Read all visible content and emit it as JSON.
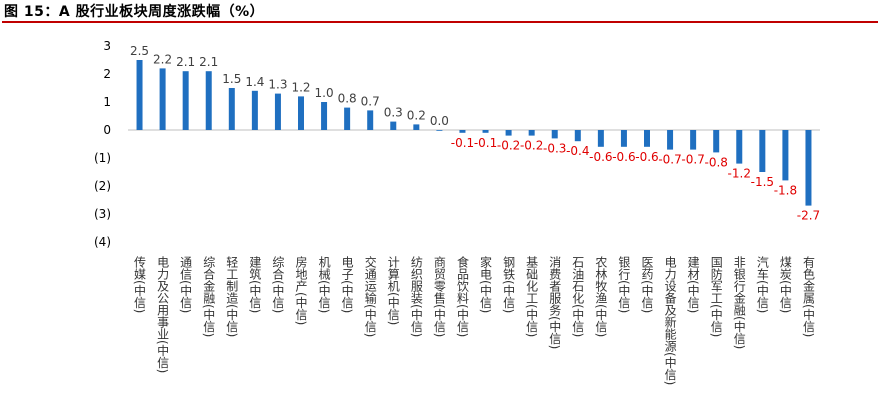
{
  "title": "图 15：A 股行业板块周度涨跌幅（%）",
  "colors": {
    "bar": "#1f6fc0",
    "positive_label": "#404040",
    "negative_label": "#e00000",
    "rule": "#c00000"
  },
  "chart_data": {
    "type": "bar",
    "title": "图 15：A 股行业板块周度涨跌幅（%）",
    "xlabel": "",
    "ylabel": "",
    "ylim": [
      -4,
      3
    ],
    "yticks": [
      3,
      2,
      1,
      0,
      -1,
      -2,
      -3,
      -4
    ],
    "ytick_labels": [
      "3",
      "2",
      "1",
      "0",
      "(1)",
      "(2)",
      "(3)",
      "(4)"
    ],
    "grid": false,
    "legend": "none",
    "categories": [
      "传媒(中信)",
      "电力及公用事业(中信)",
      "通信(中信)",
      "综合金融(中信)",
      "轻工制造(中信)",
      "建筑(中信)",
      "综合(中信)",
      "房地产(中信)",
      "机械(中信)",
      "电子(中信)",
      "交通运输(中信)",
      "计算机(中信)",
      "纺织服装(中信)",
      "商贸零售(中信)",
      "食品饮料(中信)",
      "家电(中信)",
      "钢铁(中信)",
      "基础化工(中信)",
      "消费者服务(中信)",
      "石油石化(中信)",
      "农林牧渔(中信)",
      "银行(中信)",
      "医药(中信)",
      "电力设备及新能源(中信)",
      "建材(中信)",
      "国防军工(中信)",
      "非银行金融(中信)",
      "汽车(中信)",
      "煤炭(中信)",
      "有色金属(中信)"
    ],
    "values": [
      2.5,
      2.2,
      2.1,
      2.1,
      1.5,
      1.4,
      1.3,
      1.2,
      1.0,
      0.8,
      0.7,
      0.3,
      0.2,
      0.0,
      -0.1,
      -0.1,
      -0.2,
      -0.2,
      -0.3,
      -0.4,
      -0.6,
      -0.6,
      -0.6,
      -0.7,
      -0.7,
      -0.8,
      -1.2,
      -1.5,
      -1.8,
      -2.7
    ],
    "data_labels": [
      "2.5",
      "2.2",
      "2.1",
      "2.1",
      "1.5",
      "1.4",
      "1.3",
      "1.2",
      "1.0",
      "0.8",
      "0.7",
      "0.3",
      "0.2",
      "0.0",
      "-0.1",
      "-0.1",
      "-0.2",
      "-0.2",
      "-0.3",
      "-0.4",
      "-0.6",
      "-0.6",
      "-0.6",
      "-0.7",
      "-0.7",
      "-0.8",
      "-1.2",
      "-1.5",
      "-1.8",
      "-2.7"
    ]
  }
}
